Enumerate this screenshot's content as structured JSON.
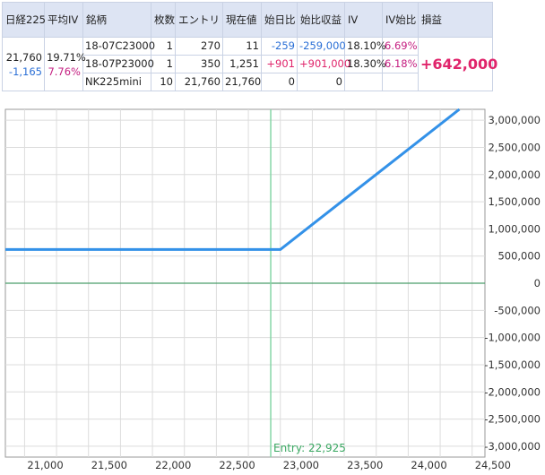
{
  "table": {
    "headers": [
      "日経225",
      "平均IV",
      "銘柄",
      "枚数",
      "エントリ",
      "現在値",
      "始日比",
      "始比収益",
      "IV",
      "IV始比",
      "損益"
    ],
    "underlying": {
      "price": "21,760",
      "change": "-1,165"
    },
    "avg_iv": {
      "value": "19.71%",
      "change": "7.76%"
    },
    "rows": [
      {
        "name": "18-07C23000",
        "qty": "1",
        "entry": "270",
        "current": "11",
        "chg": "-259",
        "pnl": "-259,000",
        "iv": "18.10%",
        "ivchg": "6.69%"
      },
      {
        "name": "18-07P23000",
        "qty": "1",
        "entry": "350",
        "current": "1,251",
        "chg": "+901",
        "pnl": "+901,000",
        "iv": "18.30%",
        "ivchg": "6.18%"
      },
      {
        "name": "NK225mini",
        "qty": "10",
        "entry": "21,760",
        "current": "21,760",
        "chg": "0",
        "pnl": "0",
        "iv": "",
        "ivchg": ""
      }
    ],
    "total_pnl": "+642,000"
  },
  "chart_data": {
    "type": "line",
    "title": "",
    "xlabel": "",
    "ylabel": "",
    "xlim": [
      20850,
      24600
    ],
    "ylim": [
      -3200000,
      3200000
    ],
    "x_ticks": [
      21000,
      21500,
      22000,
      22500,
      23000,
      23500,
      24000,
      24500
    ],
    "x_tick_labels": [
      "21,000",
      "21,500",
      "22,000",
      "22,500",
      "23,000",
      "23,500",
      "24,000",
      "24,500"
    ],
    "y_ticks": [
      3000000,
      2500000,
      2000000,
      1500000,
      1000000,
      500000,
      0,
      -500000,
      -1000000,
      -1500000,
      -2000000,
      -2500000,
      -3000000
    ],
    "y_tick_labels": [
      "3,000,000",
      "2,500,000",
      "2,000,000",
      "1,500,000",
      "1,000,000",
      "500,000",
      "0",
      "-500,000",
      "-1,000,000",
      "-1,500,000",
      "-2,000,000",
      "-2,500,000",
      "-3,000,000"
    ],
    "grid": true,
    "series": [
      {
        "values_x": [
          20850,
          23000,
          24400
        ],
        "values_y": [
          620000,
          620000,
          3200000
        ]
      }
    ],
    "entry_line": {
      "x": 22925,
      "label": "Entry: 22,925"
    },
    "zero_line": 0,
    "colors": {
      "series": "#3391e8",
      "entry": "#86d6a6",
      "zero": "#4a9e6a",
      "grid": "#dcdcdc",
      "axis_text": "#333333"
    }
  }
}
